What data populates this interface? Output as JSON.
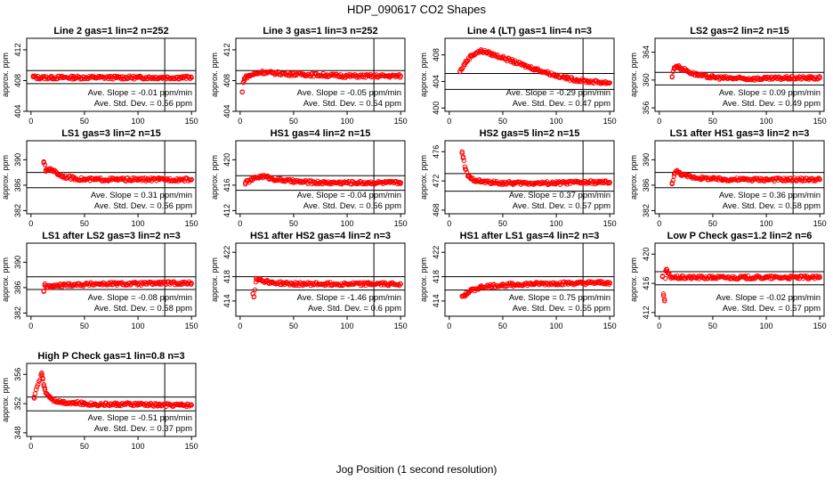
{
  "figure": {
    "title": "HDP_090617  CO2 Shapes",
    "xlabel": "Jog Position (1 second resolution)",
    "point_color": "#ff0000",
    "line_color": "#000000"
  },
  "chart_data": [
    {
      "type": "scatter",
      "title": "Line 2 gas=1 lin=2 n=252",
      "ylabel": "approx. ppm",
      "xlim": [
        0,
        150
      ],
      "ylim": [
        404,
        413.5
      ],
      "yticks": [
        404,
        408,
        412
      ],
      "xticks": [
        0,
        50,
        100,
        150
      ],
      "hlines": [
        409.3,
        407.6
      ],
      "vline": 125,
      "series": [
        {
          "x": [
            2,
            5,
            10,
            20,
            30,
            40,
            60,
            80,
            100,
            120,
            140,
            150
          ],
          "y": [
            408.5,
            408.4,
            408.4,
            408.4,
            408.4,
            408.4,
            408.4,
            408.4,
            408.4,
            408.4,
            408.4,
            408.4
          ]
        }
      ],
      "ave_slope": "Ave. Slope =  -0.01  ppm/min",
      "ave_std_dev": "Ave. Std. Dev. =  0.56  ppm"
    },
    {
      "type": "scatter",
      "title": "Line 3 gas=1 lin=3 n=252",
      "ylabel": "approx. ppm",
      "xlim": [
        0,
        150
      ],
      "ylim": [
        404,
        413.5
      ],
      "yticks": [
        404,
        408,
        412
      ],
      "xticks": [
        0,
        50,
        100,
        150
      ],
      "hlines": [
        409.3,
        407.6
      ],
      "vline": 125,
      "series": [
        {
          "x": [
            2,
            3,
            4,
            6,
            8,
            10,
            15,
            20,
            30,
            40,
            60,
            80,
            100,
            120,
            140,
            150
          ],
          "y": [
            406.5,
            407.8,
            408.3,
            408.5,
            408.6,
            408.7,
            408.9,
            409.1,
            409.0,
            408.9,
            408.8,
            408.7,
            408.6,
            408.6,
            408.6,
            408.6
          ]
        }
      ],
      "ave_slope": "Ave. Slope =  -0.05  ppm/min",
      "ave_std_dev": "Ave. Std. Dev. =  0.54  ppm"
    },
    {
      "type": "scatter",
      "title": "Line 4 (LT) gas=1 lin=4 n=3",
      "ylabel": "approx. ppm",
      "xlim": [
        0,
        150
      ],
      "ylim": [
        399.5,
        410.5
      ],
      "yticks": [
        400,
        404,
        408
      ],
      "xticks": [
        0,
        50,
        100,
        150
      ],
      "hlines": [
        405.2,
        402.8
      ],
      "vline": 125,
      "series": [
        {
          "x": [
            10,
            15,
            20,
            25,
            30,
            35,
            40,
            50,
            60,
            70,
            80,
            90,
            100,
            110,
            120,
            130,
            140,
            150
          ],
          "y": [
            405.5,
            406.8,
            407.8,
            408.3,
            408.6,
            408.4,
            408.1,
            407.6,
            407.0,
            406.4,
            405.9,
            405.4,
            404.9,
            404.5,
            404.2,
            404.0,
            403.9,
            403.8
          ]
        }
      ],
      "ave_slope": "Ave. Slope =  -0.29  ppm/min",
      "ave_std_dev": "Ave. Std. Dev. =  0.47  ppm"
    },
    {
      "type": "scatter",
      "title": "LS2 gas=2 lin=2 n=15",
      "ylabel": "approx. ppm",
      "xlim": [
        0,
        150
      ],
      "ylim": [
        355.5,
        366
      ],
      "yticks": [
        356,
        360,
        364
      ],
      "xticks": [
        0,
        50,
        100,
        150
      ],
      "hlines": [
        361.1,
        359.3
      ],
      "vline": 125,
      "series": [
        {
          "x": [
            12,
            14,
            16,
            18,
            20,
            25,
            30,
            40,
            50,
            60,
            80,
            100,
            120,
            140,
            150
          ],
          "y": [
            360.5,
            361.8,
            362.0,
            361.9,
            361.7,
            361.4,
            361.0,
            360.6,
            360.4,
            360.3,
            360.2,
            360.2,
            360.3,
            360.3,
            360.3
          ]
        }
      ],
      "ave_slope": "Ave. Slope =  0.09  ppm/min",
      "ave_std_dev": "Ave. Std. Dev. =  0.49  ppm"
    },
    {
      "type": "scatter",
      "title": "LS1 gas=3 lin=2 n=15",
      "ylabel": "approx. ppm",
      "xlim": [
        0,
        150
      ],
      "ylim": [
        381.5,
        393
      ],
      "yticks": [
        382,
        386,
        390
      ],
      "xticks": [
        0,
        50,
        100,
        150
      ],
      "hlines": [
        388.0,
        385.6
      ],
      "vline": 125,
      "series": [
        {
          "x": [
            12,
            14,
            16,
            18,
            20,
            25,
            30,
            40,
            50,
            60,
            80,
            100,
            120,
            140,
            150
          ],
          "y": [
            389.7,
            388.2,
            388.5,
            388.6,
            388.4,
            387.8,
            387.4,
            387.1,
            386.9,
            386.9,
            386.9,
            386.9,
            386.9,
            386.9,
            386.9
          ]
        }
      ],
      "ave_slope": "Ave. Slope =  0.31  ppm/min",
      "ave_std_dev": "Ave. Std. Dev. =  0.56  ppm"
    },
    {
      "type": "scatter",
      "title": "HS1 gas=4 lin=2 n=15",
      "ylabel": "approx. ppm",
      "xlim": [
        0,
        150
      ],
      "ylim": [
        411.5,
        423
      ],
      "yticks": [
        412,
        416,
        420
      ],
      "xticks": [
        0,
        50,
        100,
        150
      ],
      "hlines": [
        417.5,
        415.2
      ],
      "vline": 125,
      "series": [
        {
          "x": [
            5,
            10,
            15,
            20,
            25,
            30,
            40,
            50,
            60,
            80,
            100,
            120,
            140,
            150
          ],
          "y": [
            416.4,
            416.8,
            417.2,
            417.4,
            417.3,
            417.0,
            416.8,
            416.6,
            416.5,
            416.4,
            416.4,
            416.4,
            416.4,
            416.4
          ]
        }
      ],
      "ave_slope": "Ave. Slope =  -0.04  ppm/min",
      "ave_std_dev": "Ave. Std. Dev. =  0.56  ppm"
    },
    {
      "type": "scatter",
      "title": "HS2 gas=5 lin=2 n=15",
      "ylabel": "approx. ppm",
      "xlim": [
        0,
        150
      ],
      "ylim": [
        467.5,
        477.5
      ],
      "yticks": [
        468,
        472,
        476
      ],
      "xticks": [
        0,
        50,
        100,
        150
      ],
      "hlines": [
        473.0,
        470.6
      ],
      "vline": 125,
      "series": [
        {
          "x": [
            12,
            13,
            15,
            18,
            20,
            25,
            30,
            40,
            50,
            60,
            80,
            100,
            120,
            140,
            150
          ],
          "y": [
            475.8,
            475.3,
            473.6,
            472.6,
            472.3,
            472.1,
            471.9,
            471.8,
            471.7,
            471.7,
            471.7,
            471.7,
            471.8,
            471.8,
            471.8
          ]
        }
      ],
      "ave_slope": "Ave. Slope =  0.37  ppm/min",
      "ave_std_dev": "Ave. Std. Dev. =  0.57  ppm"
    },
    {
      "type": "scatter",
      "title": "LS1 after HS1 gas=3 lin=2 n=3",
      "ylabel": "approx. ppm",
      "xlim": [
        0,
        150
      ],
      "ylim": [
        381.5,
        393
      ],
      "yticks": [
        382,
        386,
        390
      ],
      "xticks": [
        0,
        50,
        100,
        150
      ],
      "hlines": [
        388.0,
        385.6
      ],
      "vline": 125,
      "series": [
        {
          "x": [
            12,
            14,
            16,
            18,
            20,
            25,
            30,
            40,
            50,
            60,
            80,
            100,
            120,
            140,
            150
          ],
          "y": [
            386.2,
            387.8,
            388.2,
            388.0,
            387.8,
            387.5,
            387.3,
            387.1,
            387.0,
            386.9,
            386.9,
            386.9,
            386.9,
            386.9,
            386.9
          ]
        }
      ],
      "ave_slope": "Ave. Slope =  0.36  ppm/min",
      "ave_std_dev": "Ave. Std. Dev. =  0.58  ppm"
    },
    {
      "type": "scatter",
      "title": "LS1 after LS2 gas=3 lin=2 n=3",
      "ylabel": "approx. ppm",
      "xlim": [
        0,
        150
      ],
      "ylim": [
        381.5,
        393
      ],
      "yticks": [
        382,
        386,
        390
      ],
      "xticks": [
        0,
        50,
        100,
        150
      ],
      "hlines": [
        387.7,
        385.7
      ],
      "vline": 125,
      "series": [
        {
          "x": [
            12,
            13,
            15,
            18,
            20,
            25,
            30,
            40,
            50,
            60,
            80,
            100,
            120,
            140,
            150
          ],
          "y": [
            385.4,
            386.6,
            386.0,
            386.2,
            386.2,
            386.3,
            386.4,
            386.5,
            386.5,
            386.6,
            386.6,
            386.6,
            386.7,
            386.7,
            386.7
          ]
        }
      ],
      "ave_slope": "Ave. Slope =  -0.08  ppm/min",
      "ave_std_dev": "Ave. Std. Dev. =  0.58  ppm"
    },
    {
      "type": "scatter",
      "title": "HS1 after HS2 gas=4 lin=2 n=3",
      "ylabel": "approx. ppm",
      "xlim": [
        0,
        150
      ],
      "ylim": [
        411.5,
        423.5
      ],
      "yticks": [
        414,
        418,
        422
      ],
      "xticks": [
        0,
        50,
        100,
        150
      ],
      "hlines": [
        418.0,
        415.8
      ],
      "vline": 125,
      "series": [
        {
          "x": [
            12,
            13,
            15,
            18,
            20,
            25,
            30,
            40,
            50,
            60,
            80,
            100,
            120,
            140,
            150
          ],
          "y": [
            415.2,
            414.7,
            417.7,
            417.6,
            417.4,
            417.2,
            417.0,
            416.9,
            416.8,
            416.8,
            416.8,
            416.8,
            416.8,
            416.8,
            416.8
          ]
        }
      ],
      "ave_slope": "Ave. Slope =  -1.46  ppm/min",
      "ave_std_dev": "Ave. Std. Dev. =  0.6  ppm"
    },
    {
      "type": "scatter",
      "title": "HS1 after LS1 gas=4 lin=2 n=3",
      "ylabel": "approx. ppm",
      "xlim": [
        0,
        150
      ],
      "ylim": [
        411.5,
        423.5
      ],
      "yticks": [
        414,
        418,
        422
      ],
      "xticks": [
        0,
        50,
        100,
        150
      ],
      "hlines": [
        418.0,
        415.8
      ],
      "vline": 125,
      "series": [
        {
          "x": [
            12,
            15,
            18,
            20,
            25,
            30,
            40,
            50,
            60,
            80,
            100,
            120,
            140,
            150
          ],
          "y": [
            414.8,
            415.0,
            415.4,
            415.7,
            416.0,
            416.3,
            416.5,
            416.6,
            416.7,
            416.8,
            416.9,
            416.9,
            417.0,
            417.0
          ]
        }
      ],
      "ave_slope": "Ave. Slope =  0.75  ppm/min",
      "ave_std_dev": "Ave. Std. Dev. =  0.55  ppm"
    },
    {
      "type": "scatter",
      "title": "Low P Check gas=1.2 lin=2 n=6",
      "ylabel": "approx. ppm",
      "xlim": [
        0,
        150
      ],
      "ylim": [
        411.5,
        421.5
      ],
      "yticks": [
        412,
        416,
        420
      ],
      "xticks": [
        0,
        50,
        100,
        150
      ],
      "hlines": [
        417.6,
        415.8
      ],
      "vline": 125,
      "series": [
        {
          "x": [
            3,
            4,
            5,
            6,
            7,
            8,
            10,
            15,
            20,
            30,
            50,
            80,
            100,
            120,
            140,
            150
          ],
          "y": [
            417.0,
            414.3,
            413.6,
            417.7,
            417.9,
            417.4,
            416.9,
            416.8,
            416.8,
            416.8,
            416.8,
            416.8,
            416.8,
            416.8,
            416.8,
            416.8
          ]
        }
      ],
      "ave_slope": "Ave. Slope =  -0.02  ppm/min",
      "ave_std_dev": "Ave. Std. Dev. =  0.57  ppm"
    },
    {
      "type": "scatter",
      "title": "High P Check gas=1 lin=0.8 n=3",
      "ylabel": "approx. ppm",
      "xlim": [
        0,
        150
      ],
      "ylim": [
        347.5,
        357.5
      ],
      "yticks": [
        348,
        352,
        356
      ],
      "xticks": [
        0,
        50,
        100,
        150
      ],
      "hlines": [
        352.9,
        351.0
      ],
      "vline": 125,
      "series": [
        {
          "x": [
            3,
            10,
            11,
            12,
            13,
            15,
            18,
            20,
            25,
            30,
            40,
            50,
            60,
            80,
            100,
            120,
            140,
            150
          ],
          "y": [
            352.9,
            356.2,
            355.5,
            354.6,
            353.9,
            353.3,
            352.9,
            352.6,
            352.3,
            352.2,
            352.1,
            352.0,
            351.9,
            351.9,
            351.9,
            351.8,
            351.8,
            351.8
          ]
        }
      ],
      "ave_slope": "Ave. Slope =  -0.51  ppm/min",
      "ave_std_dev": "Ave. Std. Dev. =  0.37  ppm"
    }
  ]
}
